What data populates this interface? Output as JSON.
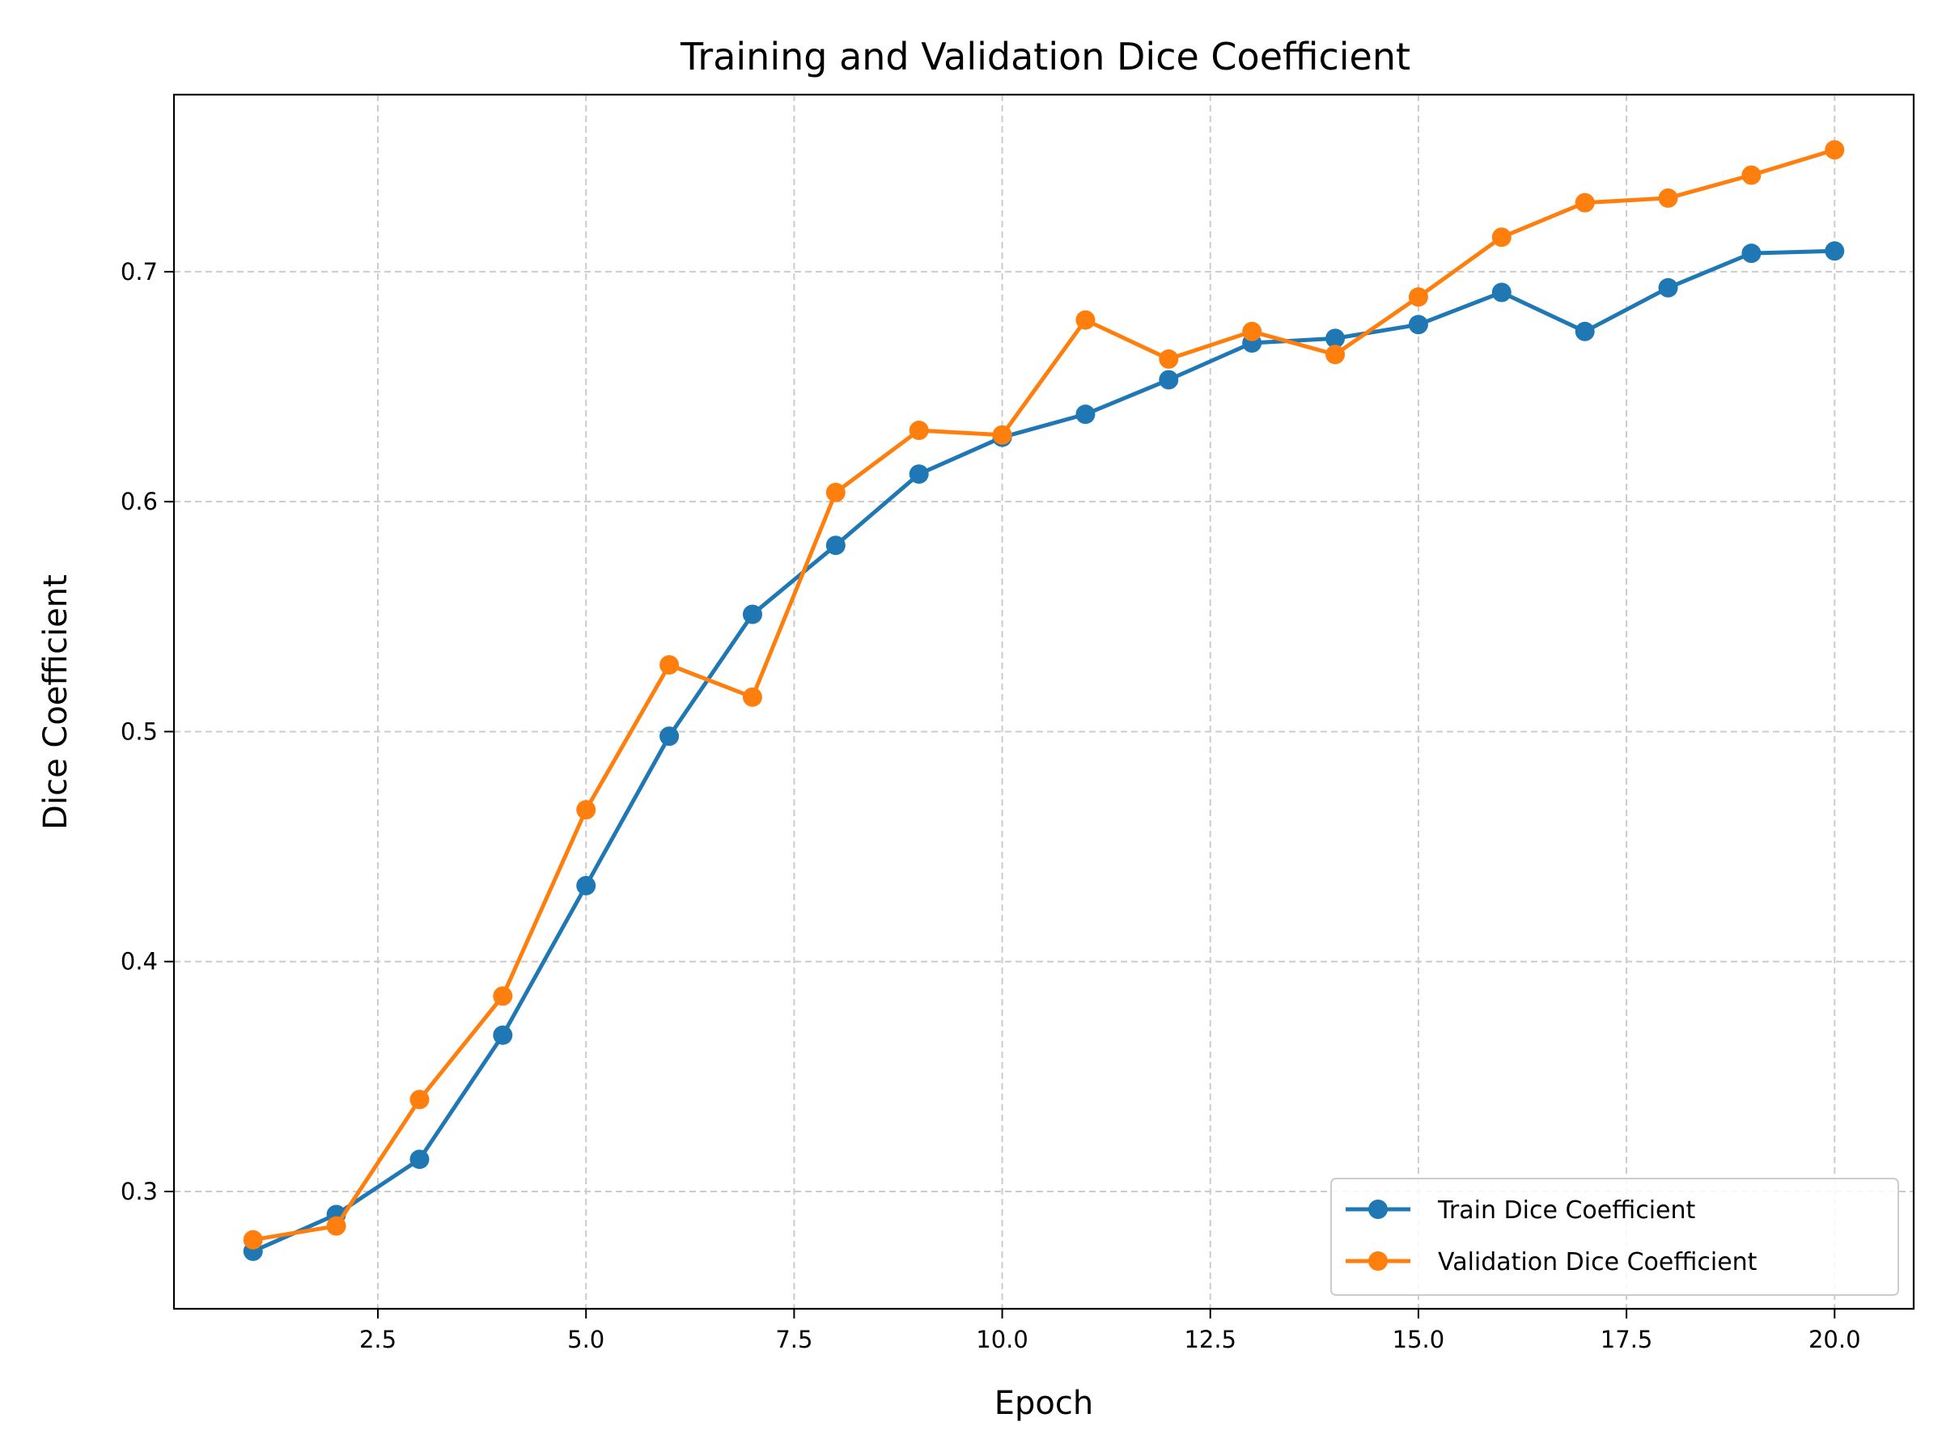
{
  "chart_data": {
    "type": "line",
    "title": "Training and Validation Dice Coefficient",
    "xlabel": "Epoch",
    "ylabel": "Dice Coefficient",
    "xlim": [
      0.05,
      20.95
    ],
    "ylim": [
      0.249,
      0.777
    ],
    "x_ticks": [
      2.5,
      5.0,
      7.5,
      10.0,
      12.5,
      15.0,
      17.5,
      20.0
    ],
    "x_tick_labels": [
      "2.5",
      "5.0",
      "7.5",
      "10.0",
      "12.5",
      "15.0",
      "17.5",
      "20.0"
    ],
    "y_ticks": [
      0.3,
      0.4,
      0.5,
      0.6,
      0.7
    ],
    "y_tick_labels": [
      "0.3",
      "0.4",
      "0.5",
      "0.6",
      "0.7"
    ],
    "grid": true,
    "legend_position": "lower-right",
    "x": [
      1,
      2,
      3,
      4,
      5,
      6,
      7,
      8,
      9,
      10,
      11,
      12,
      13,
      14,
      15,
      16,
      17,
      18,
      19,
      20
    ],
    "series": [
      {
        "name": "Train Dice Coefficient",
        "color": "#1f77b4",
        "values": [
          0.274,
          0.29,
          0.314,
          0.368,
          0.433,
          0.498,
          0.551,
          0.581,
          0.612,
          0.628,
          0.638,
          0.653,
          0.669,
          0.671,
          0.677,
          0.691,
          0.674,
          0.693,
          0.708,
          0.709
        ]
      },
      {
        "name": "Validation Dice Coefficient",
        "color": "#ff7f0e",
        "values": [
          0.279,
          0.285,
          0.34,
          0.385,
          0.466,
          0.529,
          0.515,
          0.604,
          0.631,
          0.629,
          0.679,
          0.662,
          0.674,
          0.664,
          0.689,
          0.715,
          0.73,
          0.732,
          0.742,
          0.753
        ]
      }
    ]
  }
}
